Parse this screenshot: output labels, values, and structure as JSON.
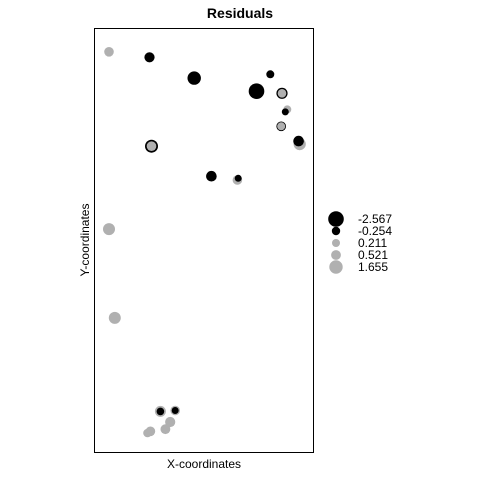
{
  "chart_data": {
    "type": "scatter",
    "title": "Residuals",
    "xlabel": "X-coordinates",
    "ylabel": "Y-coordinates",
    "xlim": [
      0,
      100
    ],
    "ylim": [
      0,
      100
    ],
    "grid": false,
    "legend": {
      "placement": "right",
      "entries": [
        {
          "label": "-2.567",
          "value": -2.567
        },
        {
          "label": "-0.254",
          "value": -0.254
        },
        {
          "label": "0.211",
          "value": 0.211
        },
        {
          "label": "0.521",
          "value": 0.521
        },
        {
          "label": "1.655",
          "value": 1.655
        }
      ]
    },
    "colors": {
      "negative": "#000000",
      "positive": "#b0b0b0"
    },
    "points": [
      {
        "x": 6.4,
        "y": 94.6,
        "r": 0.5
      },
      {
        "x": 25.0,
        "y": 93.3,
        "r": -0.6
      },
      {
        "x": 45.5,
        "y": 88.4,
        "r": -1.6
      },
      {
        "x": 74.1,
        "y": 85.3,
        "r": -2.567
      },
      {
        "x": 80.4,
        "y": 89.3,
        "r": -0.2
      },
      {
        "x": 85.8,
        "y": 84.8,
        "r": -0.9
      },
      {
        "x": 85.8,
        "y": 84.8,
        "r": 0.3
      },
      {
        "x": 88.2,
        "y": 81.0,
        "r": 0.211
      },
      {
        "x": 87.3,
        "y": 80.4,
        "r": -0.1
      },
      {
        "x": 85.4,
        "y": 77.0,
        "r": -0.5
      },
      {
        "x": 85.4,
        "y": 77.0,
        "r": 0.2
      },
      {
        "x": 93.4,
        "y": 73.5,
        "r": -0.7
      },
      {
        "x": 93.9,
        "y": 72.8,
        "r": 1.2
      },
      {
        "x": 25.9,
        "y": 72.3,
        "r": -1.5
      },
      {
        "x": 25.9,
        "y": 72.3,
        "r": 0.5
      },
      {
        "x": 53.4,
        "y": 65.2,
        "r": -0.7
      },
      {
        "x": 65.3,
        "y": 64.3,
        "r": 0.5
      },
      {
        "x": 65.7,
        "y": 64.7,
        "r": -0.1
      },
      {
        "x": 6.4,
        "y": 52.7,
        "r": 1.1
      },
      {
        "x": 9.1,
        "y": 31.7,
        "r": 1.1
      },
      {
        "x": 30.0,
        "y": 9.6,
        "r": 0.8
      },
      {
        "x": 30.0,
        "y": 9.6,
        "r": -0.15
      },
      {
        "x": 36.8,
        "y": 9.8,
        "r": 0.5
      },
      {
        "x": 36.8,
        "y": 9.8,
        "r": -0.1
      },
      {
        "x": 34.5,
        "y": 7.1,
        "r": 0.6
      },
      {
        "x": 32.3,
        "y": 5.4,
        "r": 0.55
      },
      {
        "x": 25.4,
        "y": 4.9,
        "r": 0.5
      },
      {
        "x": 24.1,
        "y": 4.5,
        "r": 0.3
      }
    ]
  }
}
